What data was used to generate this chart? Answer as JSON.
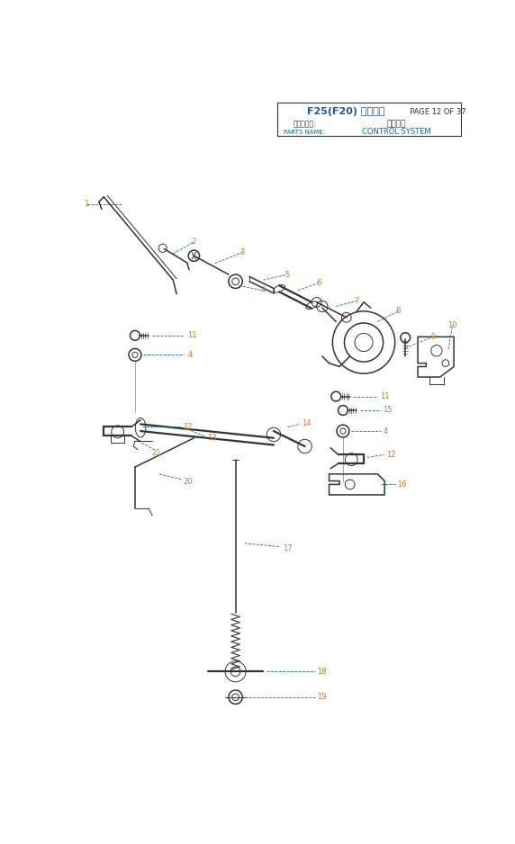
{
  "title": "F25(F20) 零件手册",
  "page": "PAGE 12 OF 37",
  "parts_name_cn": "零部件名称:",
  "parts_value_cn": "控制系统",
  "parts_name_en": "PARTS NAME:",
  "parts_value_en": "CONTROL SYSTEM",
  "bg_color": "#ffffff",
  "title_color": "#2255aa",
  "label_color": "#cc7722",
  "line_color": "#333333",
  "teal_color": "#007788"
}
